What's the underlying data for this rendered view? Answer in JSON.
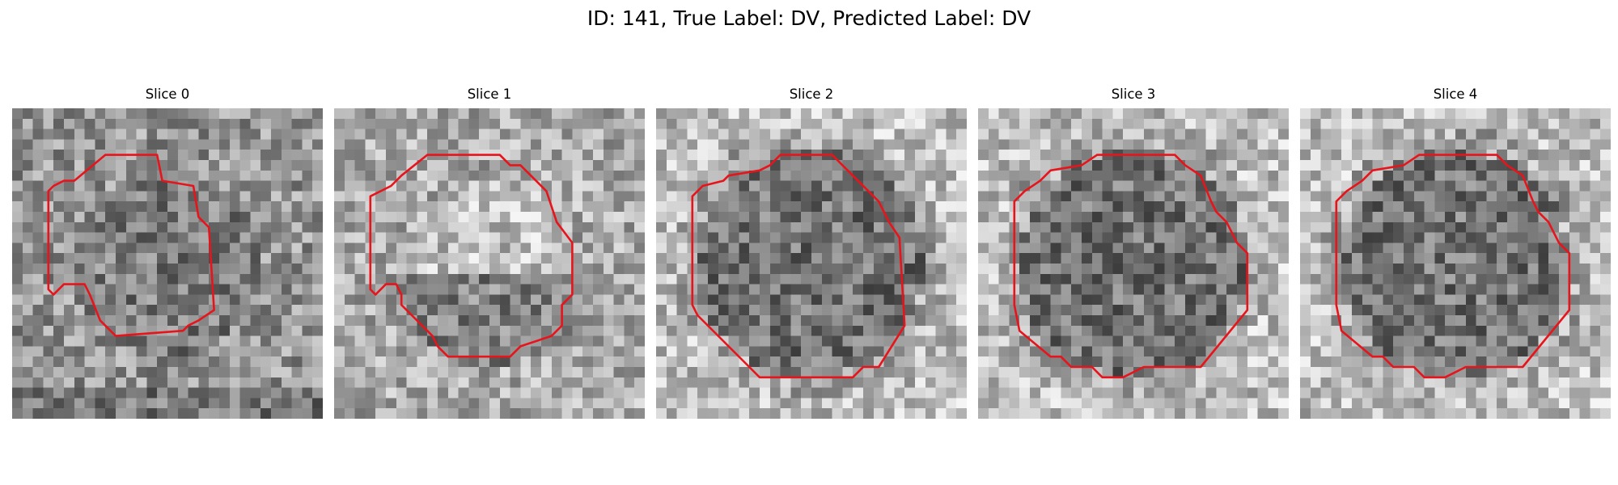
{
  "figure": {
    "title": "ID: 141, True Label: DV, Predicted Label: DV",
    "contour_color": "#e8141b",
    "colormap": "gray",
    "grid_size": 30
  },
  "slices": [
    {
      "title": "Slice 0",
      "contour": [
        [
          9,
          4.5
        ],
        [
          14,
          4.5
        ],
        [
          14.5,
          7
        ],
        [
          17.5,
          7.5
        ],
        [
          18,
          10.5
        ],
        [
          19,
          11.5
        ],
        [
          19.5,
          19.5
        ],
        [
          18,
          20.5
        ],
        [
          17,
          21
        ],
        [
          16.5,
          21.5
        ],
        [
          10,
          22
        ],
        [
          8.5,
          20.5
        ],
        [
          7.5,
          18
        ],
        [
          7,
          17
        ],
        [
          5,
          17
        ],
        [
          4,
          18
        ],
        [
          3.5,
          17.5
        ],
        [
          3.5,
          8
        ],
        [
          4,
          7.5
        ],
        [
          5,
          7
        ],
        [
          6,
          7
        ],
        [
          9,
          4.5
        ]
      ]
    },
    {
      "title": "Slice 1",
      "contour": [
        [
          9,
          4.5
        ],
        [
          16,
          4.5
        ],
        [
          17,
          5.5
        ],
        [
          18,
          5.5
        ],
        [
          20.5,
          8
        ],
        [
          21.5,
          11
        ],
        [
          23,
          13
        ],
        [
          23,
          18
        ],
        [
          22,
          19
        ],
        [
          22,
          21
        ],
        [
          21,
          22
        ],
        [
          18,
          23
        ],
        [
          17,
          24
        ],
        [
          11,
          24
        ],
        [
          10,
          23
        ],
        [
          9.5,
          22
        ],
        [
          6.5,
          19
        ],
        [
          6.5,
          18
        ],
        [
          6,
          17
        ],
        [
          5,
          17
        ],
        [
          4,
          18
        ],
        [
          3.5,
          17.5
        ],
        [
          3.5,
          8.5
        ],
        [
          5.5,
          7.5
        ],
        [
          6.5,
          6.5
        ],
        [
          9,
          4.5
        ]
      ]
    },
    {
      "title": "Slice 2",
      "contour": [
        [
          11,
          5.5
        ],
        [
          12,
          4.5
        ],
        [
          17,
          4.5
        ],
        [
          18,
          5.5
        ],
        [
          19,
          6.5
        ],
        [
          21.5,
          9
        ],
        [
          22.5,
          11
        ],
        [
          23.5,
          12.5
        ],
        [
          24,
          21
        ],
        [
          21.5,
          25
        ],
        [
          20,
          25
        ],
        [
          19,
          26
        ],
        [
          17,
          26
        ],
        [
          16,
          26
        ],
        [
          10,
          26
        ],
        [
          9,
          25
        ],
        [
          4,
          20
        ],
        [
          3.5,
          19
        ],
        [
          3.5,
          8.5
        ],
        [
          4.5,
          7.5
        ],
        [
          6.5,
          7
        ],
        [
          7,
          6.5
        ],
        [
          10,
          6
        ],
        [
          11,
          5.5
        ]
      ]
    },
    {
      "title": "Slice 3",
      "contour": [
        [
          10,
          5.5
        ],
        [
          11.5,
          4.5
        ],
        [
          19,
          4.5
        ],
        [
          20,
          5.5
        ],
        [
          21.5,
          6.5
        ],
        [
          22.5,
          9
        ],
        [
          23,
          10
        ],
        [
          24,
          11
        ],
        [
          25,
          13
        ],
        [
          26,
          14
        ],
        [
          26,
          19.5
        ],
        [
          21.5,
          25
        ],
        [
          18,
          25
        ],
        [
          16,
          25
        ],
        [
          14,
          26
        ],
        [
          12,
          26
        ],
        [
          11,
          25
        ],
        [
          9,
          25
        ],
        [
          8,
          24
        ],
        [
          7,
          24
        ],
        [
          4,
          21.5
        ],
        [
          3.5,
          19
        ],
        [
          3.5,
          9
        ],
        [
          4.5,
          8
        ],
        [
          6,
          7
        ],
        [
          7,
          6
        ],
        [
          10,
          5.5
        ]
      ]
    },
    {
      "title": "Slice 4",
      "contour": [
        [
          10,
          5.5
        ],
        [
          11.5,
          4.5
        ],
        [
          19,
          4.5
        ],
        [
          20,
          5.5
        ],
        [
          21.5,
          6.5
        ],
        [
          22.5,
          9
        ],
        [
          23,
          10
        ],
        [
          24,
          11
        ],
        [
          25,
          13
        ],
        [
          26,
          14
        ],
        [
          26,
          19.5
        ],
        [
          21.5,
          25
        ],
        [
          18,
          25
        ],
        [
          16,
          25
        ],
        [
          14,
          26
        ],
        [
          12,
          26
        ],
        [
          11,
          25
        ],
        [
          9,
          25
        ],
        [
          8,
          24
        ],
        [
          7,
          24
        ],
        [
          4,
          21.5
        ],
        [
          3.5,
          19
        ],
        [
          3.5,
          9
        ],
        [
          4.5,
          8
        ],
        [
          6,
          7
        ],
        [
          7,
          6
        ],
        [
          10,
          5.5
        ]
      ]
    }
  ]
}
